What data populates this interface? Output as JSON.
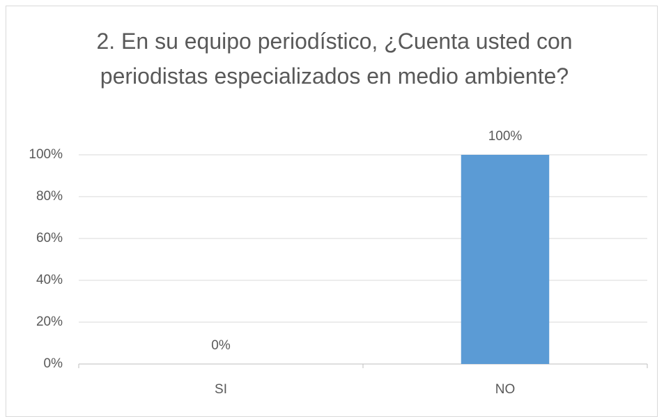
{
  "chart_data": {
    "type": "bar",
    "title": "2. En su equipo periodístico, ¿Cuenta usted con periodistas especializados en medio ambiente?",
    "categories": [
      "SI",
      "NO"
    ],
    "values": [
      0,
      100
    ],
    "value_labels": [
      "0%",
      "100%"
    ],
    "color": "#5b9bd5",
    "ylim": [
      0,
      100
    ],
    "yticks": [
      {
        "value": 0,
        "label": "0%"
      },
      {
        "value": 20,
        "label": "20%"
      },
      {
        "value": 40,
        "label": "40%"
      },
      {
        "value": 60,
        "label": "60%"
      },
      {
        "value": 80,
        "label": "80%"
      },
      {
        "value": 100,
        "label": "100%"
      }
    ],
    "grid": true
  }
}
